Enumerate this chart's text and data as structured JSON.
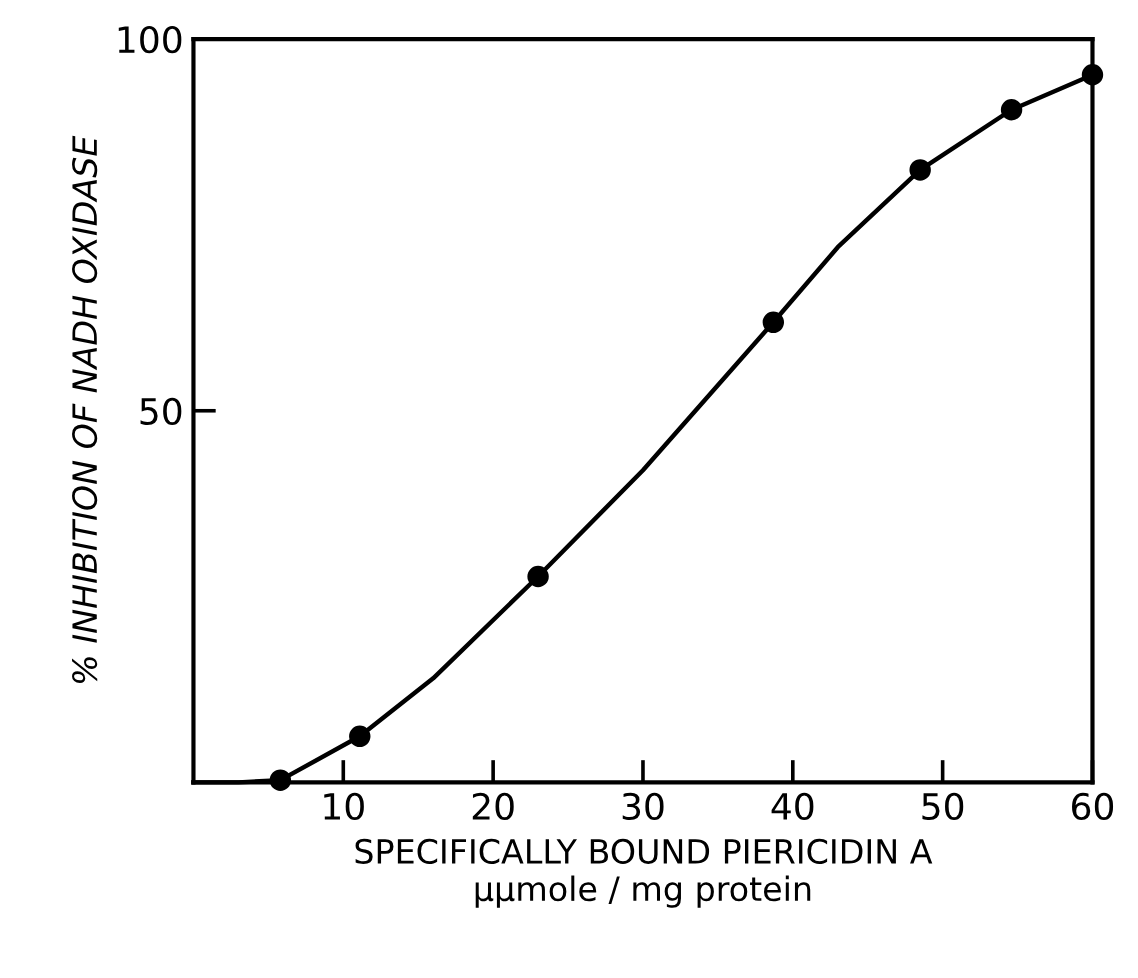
{
  "chart_data": {
    "type": "scatter",
    "xlabel": "SPECIFICALLY BOUND PIERICIDIN A\nμμmole / mg protein",
    "ylabel": "% INHIBITION OF NADH OXIDASE",
    "xlim": [
      0,
      60
    ],
    "xticks": [
      10,
      20,
      30,
      40,
      50,
      60
    ],
    "ylim": [
      0,
      100
    ],
    "yticks": [
      50,
      100
    ],
    "grid": false,
    "legend": false,
    "series": [
      {
        "type": "line",
        "color": "#000000",
        "marker": "none",
        "line_style": "solid",
        "x": [
          0,
          3,
          5.8,
          11.1,
          16,
          23,
          30,
          38.7,
          43,
          48.5,
          54.6,
          60
        ],
        "values": [
          0,
          0,
          0.3,
          6.2,
          14,
          27.7,
          42,
          61.9,
          72,
          82.4,
          90.5,
          95.2
        ]
      },
      {
        "color": "#000000",
        "marker": "circle",
        "x": [
          5.8,
          11.1,
          23,
          38.7,
          48.5,
          54.6,
          60
        ],
        "values": [
          0.3,
          6.2,
          27.7,
          61.9,
          82.4,
          90.5,
          95.2
        ]
      }
    ]
  }
}
